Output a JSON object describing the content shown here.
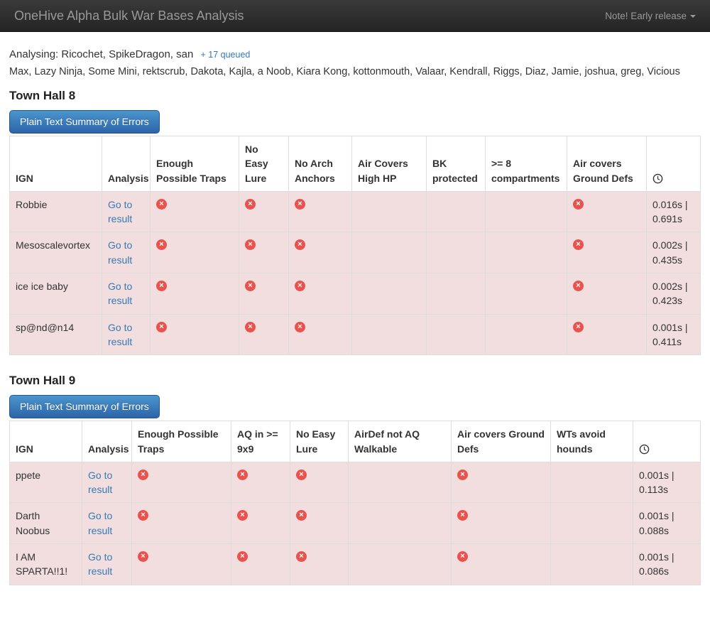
{
  "navbar": {
    "title": "OneHive Alpha Bulk War Bases Analysis",
    "note": "Note! Early release"
  },
  "queue": {
    "analysing_label": "Analysing:",
    "current": "Ricochet, SpikeDragon, san",
    "queued_link": "+ 17 queued",
    "queued_names": "Max, Lazy Ninja, Some Mini, rektscrub, Dakota, Kajla, a Noob, Kiara Kong, kottonmouth, Valaar, Kendrall, Riggs, Diaz, Jamie, joshua, greg, Vicious"
  },
  "icons": {
    "error_icon_glyph": "×",
    "clock_icon": "clock-icon",
    "chevron": "chevron-down-icon"
  },
  "colors": {
    "error_red": "#e9534d",
    "row_pink": "#f2dede",
    "link_blue": "#337ab7",
    "button_blue_top": "#4a96ce",
    "button_blue_bottom": "#2d64a8",
    "navbar_text": "#999999"
  },
  "sections": [
    {
      "title": "Town Hall 8",
      "button_label": "Plain Text Summary of Errors",
      "ign_header": "IGN",
      "analysis_header": "Analysis",
      "check_columns": [
        "Enough Possible Traps",
        "No Easy Lure",
        "No Arch Anchors",
        "Air Covers High HP",
        "BK protected",
        ">= 8 compartments",
        "Air covers Ground Defs"
      ],
      "rows": [
        {
          "ign": "Robbie",
          "analysis_label": "Go to result",
          "errors": [
            true,
            true,
            true,
            false,
            false,
            false,
            true
          ],
          "time": "0.016s | 0.691s"
        },
        {
          "ign": "Mesoscalevortex",
          "analysis_label": "Go to result",
          "errors": [
            true,
            true,
            true,
            false,
            false,
            false,
            true
          ],
          "time": "0.002s | 0.435s"
        },
        {
          "ign": "ice ice baby",
          "analysis_label": "Go to result",
          "errors": [
            true,
            true,
            true,
            false,
            false,
            false,
            true
          ],
          "time": "0.002s | 0.423s"
        },
        {
          "ign": "sp@nd@n14",
          "analysis_label": "Go to result",
          "errors": [
            true,
            true,
            true,
            false,
            false,
            false,
            true
          ],
          "time": "0.001s | 0.411s"
        }
      ]
    },
    {
      "title": "Town Hall 9",
      "button_label": "Plain Text Summary of Errors",
      "ign_header": "IGN",
      "analysis_header": "Analysis",
      "check_columns": [
        "Enough Possible Traps",
        "AQ in >= 9x9",
        "No Easy Lure",
        "AirDef not AQ Walkable",
        "Air covers Ground Defs",
        "WTs avoid hounds"
      ],
      "rows": [
        {
          "ign": "ppete",
          "analysis_label": "Go to result",
          "errors": [
            true,
            true,
            true,
            false,
            true,
            false
          ],
          "time": "0.001s | 0.113s"
        },
        {
          "ign": "Darth Noobus",
          "analysis_label": "Go to result",
          "errors": [
            true,
            true,
            true,
            false,
            true,
            false
          ],
          "time": "0.001s | 0.088s"
        },
        {
          "ign": "I AM SPARTA!!1!",
          "analysis_label": "Go to result",
          "errors": [
            true,
            true,
            true,
            false,
            true,
            false
          ],
          "time": "0.001s | 0.086s"
        }
      ]
    }
  ]
}
